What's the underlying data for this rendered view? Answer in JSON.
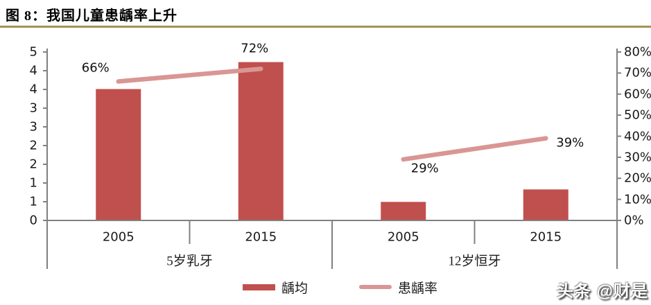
{
  "header": {
    "title": "图 8：我国儿童患龋率上升"
  },
  "footer": {
    "watermark": "头条 @财是"
  },
  "colors": {
    "bar": "#C0504D",
    "line": "#D99694",
    "divider": "#A39355",
    "axis": "#808080",
    "label_text": "#1a1a1a"
  },
  "chart_data": {
    "type": "combo",
    "groups": [
      {
        "label": "5岁乳牙",
        "categories": [
          "2005",
          "2015"
        ]
      },
      {
        "label": "12岁恒牙",
        "categories": [
          "2005",
          "2015"
        ]
      }
    ],
    "categories_flat": [
      "2005",
      "2015",
      "2005",
      "2015"
    ],
    "series": [
      {
        "name": "龋均",
        "type": "bar",
        "axis": "left",
        "values": [
          3.9,
          4.7,
          0.55,
          0.92
        ]
      },
      {
        "name": "患龋率",
        "type": "line",
        "axis": "right",
        "values": [
          66,
          72,
          29,
          39
        ],
        "point_labels": [
          "66%",
          "72%",
          "29%",
          "39%"
        ]
      }
    ],
    "left_axis": {
      "min": 0,
      "max": 5,
      "tick_labels_top_to_bottom": [
        "5",
        "4",
        "4",
        "3",
        "3",
        "2",
        "2",
        "1",
        "1",
        "0"
      ]
    },
    "right_axis": {
      "min": 0,
      "max": 80,
      "tick_labels_top_to_bottom": [
        "80%",
        "70%",
        "60%",
        "50%",
        "40%",
        "30%",
        "20%",
        "10%",
        "0%"
      ]
    },
    "grid": false,
    "legend_position": "bottom",
    "legend": [
      "龋均",
      "患龋率"
    ]
  }
}
